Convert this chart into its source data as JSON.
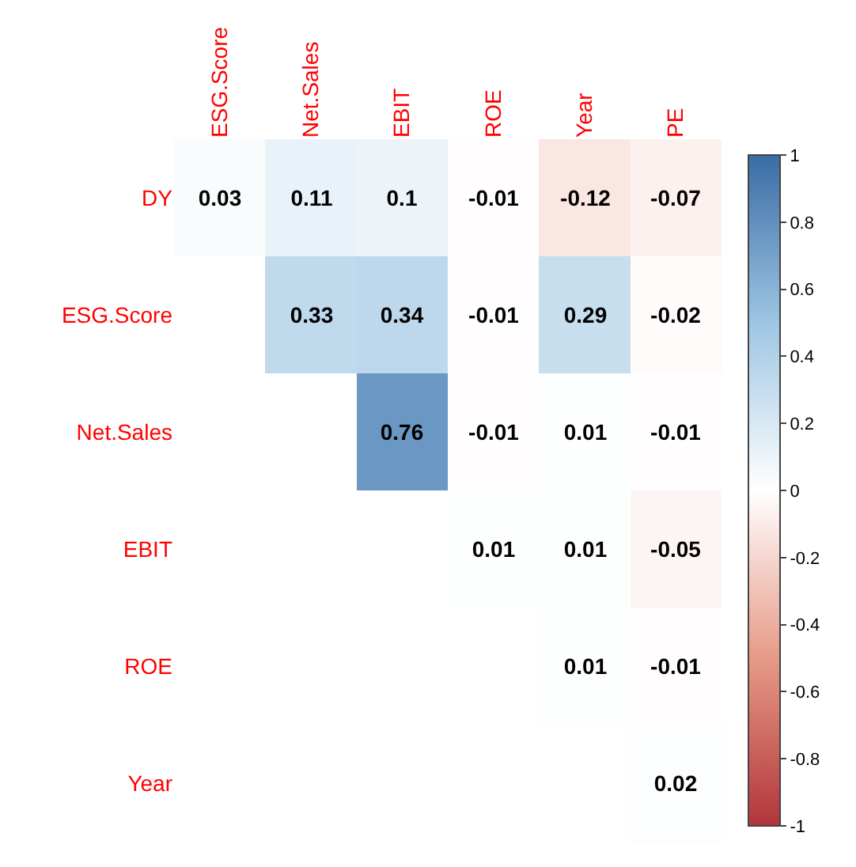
{
  "chart_data": {
    "type": "heatmap",
    "categories": [
      "ESG.Score",
      "Net.Sales",
      "EBIT",
      "ROE",
      "Year",
      "PE"
    ],
    "y_categories": [
      "DY",
      "ESG.Score",
      "Net.Sales",
      "EBIT",
      "ROE",
      "Year"
    ],
    "cells": [
      [
        0.03,
        0.11,
        0.1,
        -0.01,
        -0.12,
        -0.07
      ],
      [
        null,
        0.33,
        0.34,
        -0.01,
        0.29,
        -0.02
      ],
      [
        null,
        null,
        0.76,
        -0.01,
        0.01,
        -0.01
      ],
      [
        null,
        null,
        null,
        0.01,
        0.01,
        -0.05
      ],
      [
        null,
        null,
        null,
        null,
        0.01,
        -0.01
      ],
      [
        null,
        null,
        null,
        null,
        null,
        0.02
      ]
    ],
    "clim": [
      -1,
      1
    ],
    "cticks": [
      -1,
      -0.8,
      -0.6,
      -0.4,
      -0.2,
      0,
      0.2,
      0.4,
      0.6,
      0.8,
      1
    ],
    "data_labels": true,
    "grid": false
  }
}
